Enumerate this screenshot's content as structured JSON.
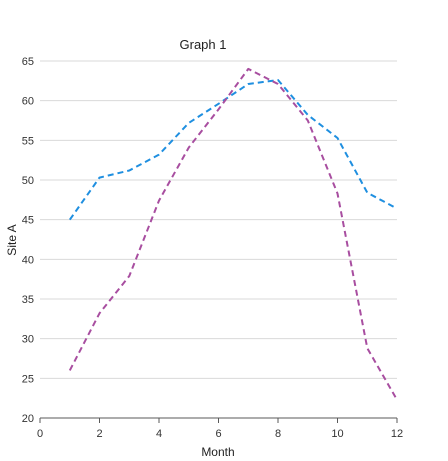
{
  "chart_data": {
    "type": "line",
    "title": "Graph 1",
    "xlabel": "Month",
    "ylabel": "Site A",
    "xlim": [
      0,
      12
    ],
    "ylim": [
      20,
      65
    ],
    "xticks": [
      0,
      2,
      4,
      6,
      8,
      10,
      12
    ],
    "yticks": [
      20,
      25,
      30,
      35,
      40,
      45,
      50,
      55,
      60,
      65
    ],
    "grid": "horizontal",
    "legend": "none",
    "series": [
      {
        "color": "#1f8fe0",
        "x": [
          1,
          2,
          3,
          4,
          5,
          6,
          7,
          8,
          9,
          10,
          11,
          12
        ],
        "values": [
          45,
          50.3,
          51.2,
          53.2,
          57.2,
          59.6,
          62.1,
          62.6,
          58.2,
          55.3,
          48.4,
          46.4
        ]
      },
      {
        "color": "#a84ea0",
        "x": [
          1,
          2,
          3,
          4,
          5,
          6,
          7,
          8,
          9,
          10,
          11,
          12
        ],
        "values": [
          26,
          33.2,
          37.9,
          47.4,
          54.1,
          58.9,
          64,
          62.1,
          57.5,
          48.3,
          28.8,
          22.3
        ]
      }
    ]
  }
}
